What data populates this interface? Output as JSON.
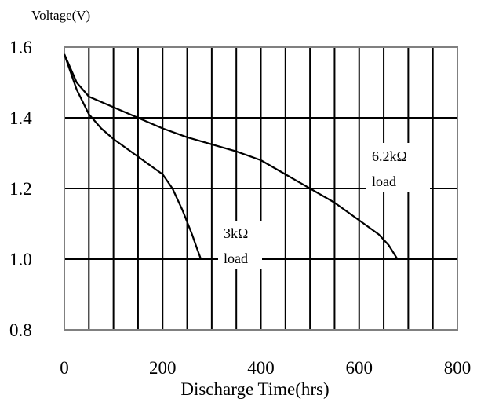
{
  "chart_data": {
    "type": "line",
    "title": "",
    "ylabel": "Voltage(V)",
    "xlabel": "Discharge Time(hrs)",
    "xlim": [
      0,
      800
    ],
    "ylim": [
      0.8,
      1.6
    ],
    "x_ticks": [
      0,
      200,
      400,
      600,
      800
    ],
    "x_tick_labels": [
      "0",
      "200",
      "400",
      "600",
      "800"
    ],
    "y_ticks": [
      0.8,
      1.0,
      1.2,
      1.4,
      1.6
    ],
    "y_tick_labels": [
      "0.8",
      "1.0",
      "1.2",
      "1.4",
      "1.6"
    ],
    "grid": true,
    "series": [
      {
        "name": "3kΩ load",
        "label_lines": [
          "3kΩ",
          "load"
        ],
        "points": [
          [
            0,
            1.58
          ],
          [
            25,
            1.48
          ],
          [
            50,
            1.41
          ],
          [
            75,
            1.37
          ],
          [
            100,
            1.34
          ],
          [
            150,
            1.29
          ],
          [
            200,
            1.24
          ],
          [
            220,
            1.2
          ],
          [
            240,
            1.14
          ],
          [
            260,
            1.07
          ],
          [
            270,
            1.03
          ],
          [
            278,
            1.0
          ]
        ]
      },
      {
        "name": "6.2kΩ load",
        "label_lines": [
          "6.2kΩ",
          "load"
        ],
        "points": [
          [
            0,
            1.58
          ],
          [
            25,
            1.5
          ],
          [
            50,
            1.46
          ],
          [
            100,
            1.43
          ],
          [
            150,
            1.4
          ],
          [
            200,
            1.37
          ],
          [
            250,
            1.345
          ],
          [
            300,
            1.325
          ],
          [
            350,
            1.305
          ],
          [
            400,
            1.28
          ],
          [
            450,
            1.24
          ],
          [
            500,
            1.2
          ],
          [
            550,
            1.16
          ],
          [
            600,
            1.11
          ],
          [
            640,
            1.07
          ],
          [
            660,
            1.04
          ],
          [
            678,
            1.0
          ]
        ]
      }
    ],
    "colors": {
      "line": "#000000",
      "grid": "#000000",
      "border": "#808080",
      "background": "#ffffff"
    }
  }
}
